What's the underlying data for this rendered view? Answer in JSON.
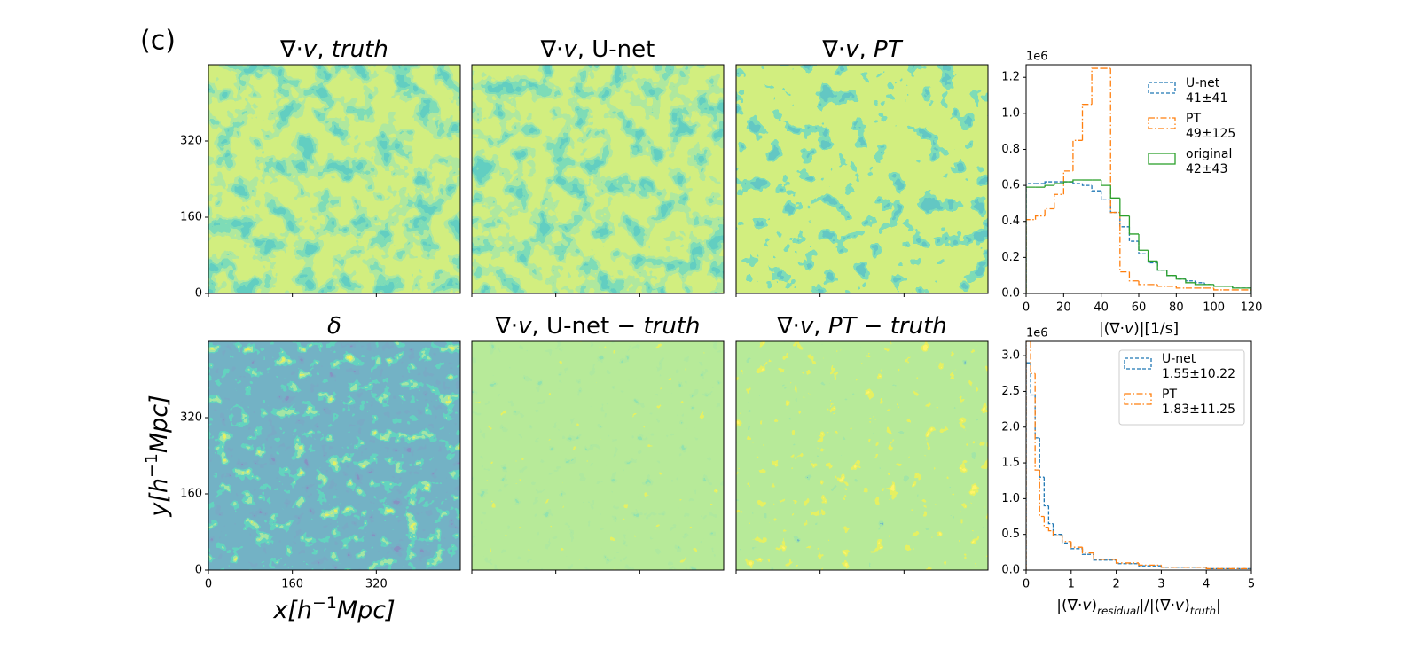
{
  "panel_label": "(c)",
  "image_panels": {
    "panels": [
      {
        "title": [
          {
            "t": "∇·"
          },
          {
            "t": "v",
            "s": "i"
          },
          {
            "t": ",  "
          },
          {
            "t": "truth",
            "s": "i"
          }
        ]
      },
      {
        "title": [
          {
            "t": "∇·"
          },
          {
            "t": "v",
            "s": "i"
          },
          {
            "t": ",  U-net"
          }
        ]
      },
      {
        "title": [
          {
            "t": "∇·"
          },
          {
            "t": "v",
            "s": "i"
          },
          {
            "t": ",  "
          },
          {
            "t": "PT",
            "s": "i"
          }
        ]
      },
      {
        "title": [
          {
            "t": "δ",
            "s": "i"
          }
        ]
      },
      {
        "title": [
          {
            "t": "∇·"
          },
          {
            "t": "v",
            "s": "i"
          },
          {
            "t": ",  U-net  −  "
          },
          {
            "t": "truth",
            "s": "i"
          }
        ]
      },
      {
        "title": [
          {
            "t": "∇·"
          },
          {
            "t": "v",
            "s": "i"
          },
          {
            "t": ",  "
          },
          {
            "t": "PT",
            "s": "i"
          },
          {
            "t": "  −  "
          },
          {
            "t": "truth",
            "s": "i"
          }
        ]
      }
    ],
    "xlim": [
      0,
      480
    ],
    "ylim": [
      0,
      480
    ],
    "xticks": [
      0,
      160,
      320
    ],
    "yticks": [
      0,
      160,
      320
    ],
    "xlabel": [
      {
        "t": "x",
        "s": "i"
      },
      {
        "t": "[",
        "s": "i"
      },
      {
        "t": "h",
        "s": "i"
      },
      {
        "t": "−1",
        "s": "sup"
      },
      {
        "t": "Mpc",
        "s": "i"
      },
      {
        "t": "]",
        "s": "i"
      }
    ],
    "ylabel": [
      {
        "t": "y",
        "s": "i"
      },
      {
        "t": "[",
        "s": "i"
      },
      {
        "t": "h",
        "s": "i"
      },
      {
        "t": "−1",
        "s": "sup"
      },
      {
        "t": "Mpc",
        "s": "i"
      },
      {
        "t": "]",
        "s": "i"
      }
    ]
  },
  "chart_data": [
    {
      "type": "histogram",
      "bins": [
        0,
        5,
        10,
        15,
        20,
        25,
        30,
        35,
        40,
        45,
        50,
        55,
        60,
        65,
        70,
        75,
        80,
        85,
        90,
        95,
        100,
        105,
        110,
        115,
        120
      ],
      "series": [
        {
          "name": "U-net",
          "summary": "41±41",
          "color": "#1f77b4",
          "linestyle": "dashed",
          "values": [
            0.61,
            0.61,
            0.62,
            0.62,
            0.62,
            0.61,
            0.6,
            0.57,
            0.52,
            0.45,
            0.37,
            0.29,
            0.22,
            0.17,
            0.13,
            0.1,
            0.08,
            0.07,
            0.06,
            0.05,
            0.04,
            0.04,
            0.03,
            0.03
          ]
        },
        {
          "name": "PT",
          "summary": "49±125",
          "color": "#ff7f0e",
          "linestyle": "dashdot",
          "values": [
            0.41,
            0.43,
            0.47,
            0.55,
            0.68,
            0.85,
            1.05,
            1.25,
            1.25,
            0.45,
            0.12,
            0.07,
            0.05,
            0.05,
            0.04,
            0.04,
            0.03,
            0.03,
            0.03,
            0.03,
            0.02,
            0.02,
            0.02,
            0.02
          ]
        },
        {
          "name": "original",
          "summary": "42±43",
          "color": "#2ca02c",
          "linestyle": "solid",
          "values": [
            0.59,
            0.59,
            0.6,
            0.61,
            0.62,
            0.63,
            0.63,
            0.63,
            0.6,
            0.53,
            0.43,
            0.33,
            0.24,
            0.18,
            0.13,
            0.1,
            0.08,
            0.06,
            0.05,
            0.05,
            0.04,
            0.04,
            0.03,
            0.03
          ]
        }
      ],
      "xlim": [
        0,
        120
      ],
      "ylim": [
        0,
        1.27
      ],
      "xticks": [
        0,
        20,
        40,
        60,
        80,
        100,
        120
      ],
      "yticks": [
        {
          "value": 0,
          "label": "0.0"
        },
        0.2,
        0.4,
        0.6,
        0.8,
        {
          "value": 1,
          "label": "1.0"
        },
        1.2
      ],
      "offset_label": "1e6",
      "xlabel": [
        {
          "t": "|(∇·"
        },
        {
          "t": "v",
          "s": "i"
        },
        {
          "t": ")|[1/s]"
        }
      ],
      "legend": "upper right",
      "legend_frame": false
    },
    {
      "type": "histogram",
      "bins": [
        0,
        0.1,
        0.2,
        0.3,
        0.4,
        0.5,
        0.6,
        0.8,
        1.0,
        1.25,
        1.5,
        2,
        2.5,
        3,
        4,
        5
      ],
      "series": [
        {
          "name": "U-net",
          "summary": "1.55±10.22",
          "color": "#1f77b4",
          "linestyle": "dashed",
          "values": [
            2.9,
            2.45,
            1.85,
            1.3,
            0.9,
            0.65,
            0.5,
            0.38,
            0.3,
            0.22,
            0.14,
            0.09,
            0.06,
            0.04,
            0.02
          ]
        },
        {
          "name": "PT",
          "summary": "1.83±11.25",
          "color": "#ff7f0e",
          "linestyle": "dashdot",
          "values": [
            3.2,
            2.75,
            1.4,
            0.75,
            0.6,
            0.55,
            0.48,
            0.4,
            0.32,
            0.24,
            0.15,
            0.1,
            0.07,
            0.04,
            0.02
          ]
        }
      ],
      "xlim": [
        0,
        5
      ],
      "ylim": [
        0,
        3.2
      ],
      "xticks": [
        0,
        1,
        2,
        3,
        4,
        5
      ],
      "yticks": [
        {
          "value": 0,
          "label": "0.0"
        },
        0.5,
        {
          "value": 1,
          "label": "1.0"
        },
        1.5,
        {
          "value": 2,
          "label": "2.0"
        },
        2.5,
        {
          "value": 3,
          "label": "3.0"
        }
      ],
      "offset_label": "1e6",
      "xlabel": [
        {
          "t": "|(∇·"
        },
        {
          "t": "v",
          "s": "i"
        },
        {
          "t": ")"
        },
        {
          "t": "residual",
          "s": "isub"
        },
        {
          "t": "|/|(∇·"
        },
        {
          "t": "v",
          "s": "i"
        },
        {
          "t": ")"
        },
        {
          "t": "truth",
          "s": "isub"
        },
        {
          "t": "|"
        }
      ],
      "legend": "upper right",
      "legend_frame": true
    }
  ]
}
